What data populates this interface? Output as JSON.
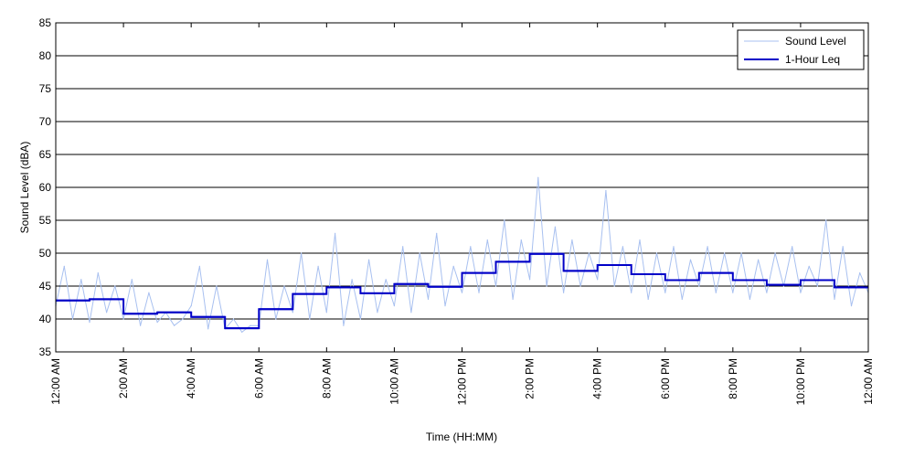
{
  "chart_data": {
    "type": "line",
    "title": "",
    "xlabel": "Time (HH:MM)",
    "ylabel": "Sound Level (dBA)",
    "ylim": [
      35,
      85
    ],
    "yticks": [
      35,
      40,
      45,
      50,
      55,
      60,
      65,
      70,
      75,
      80,
      85
    ],
    "xlim_hours": [
      0,
      24
    ],
    "xticks": [
      {
        "hour": 0,
        "label": "12:00 AM"
      },
      {
        "hour": 2,
        "label": "2:00 AM"
      },
      {
        "hour": 4,
        "label": "4:00 AM"
      },
      {
        "hour": 6,
        "label": "6:00 AM"
      },
      {
        "hour": 8,
        "label": "8:00 AM"
      },
      {
        "hour": 10,
        "label": "10:00 AM"
      },
      {
        "hour": 12,
        "label": "12:00 PM"
      },
      {
        "hour": 14,
        "label": "2:00 PM"
      },
      {
        "hour": 16,
        "label": "4:00 PM"
      },
      {
        "hour": 18,
        "label": "6:00 PM"
      },
      {
        "hour": 20,
        "label": "8:00 PM"
      },
      {
        "hour": 22,
        "label": "10:00 PM"
      },
      {
        "hour": 24,
        "label": "12:00 AM"
      }
    ],
    "grid": "horizontal",
    "legend_position": "top-right",
    "series": [
      {
        "name": "Sound Level",
        "color": "#a8c0f0",
        "x_hours": [
          0,
          0.25,
          0.5,
          0.75,
          1,
          1.25,
          1.5,
          1.75,
          2,
          2.25,
          2.5,
          2.75,
          3,
          3.25,
          3.5,
          3.75,
          4,
          4.25,
          4.5,
          4.75,
          5,
          5.25,
          5.5,
          5.75,
          6,
          6.25,
          6.5,
          6.75,
          7,
          7.25,
          7.5,
          7.75,
          8,
          8.25,
          8.5,
          8.75,
          9,
          9.25,
          9.5,
          9.75,
          10,
          10.25,
          10.5,
          10.75,
          11,
          11.25,
          11.5,
          11.75,
          12,
          12.25,
          12.5,
          12.75,
          13,
          13.25,
          13.5,
          13.75,
          14,
          14.25,
          14.5,
          14.75,
          15,
          15.25,
          15.5,
          15.75,
          16,
          16.25,
          16.5,
          16.75,
          17,
          17.25,
          17.5,
          17.75,
          18,
          18.25,
          18.5,
          18.75,
          19,
          19.25,
          19.5,
          19.75,
          20,
          20.25,
          20.5,
          20.75,
          21,
          21.25,
          21.5,
          21.75,
          22,
          22.25,
          22.5,
          22.75,
          23,
          23.25,
          23.5,
          23.75,
          24
        ],
        "values": [
          42,
          48,
          40,
          46,
          39.5,
          47,
          41,
          45,
          40,
          46,
          39,
          44,
          39.5,
          41,
          39,
          40,
          42,
          48,
          38.5,
          45,
          38.5,
          40,
          38,
          39,
          39,
          49,
          40,
          45,
          41,
          50,
          40,
          48,
          41,
          53,
          39,
          46,
          40,
          49,
          41,
          46,
          42,
          51,
          41,
          50,
          43,
          53,
          42,
          48,
          44,
          51,
          44,
          52,
          45,
          55,
          43,
          52,
          46,
          61.5,
          45,
          54,
          44,
          52,
          45,
          50,
          46,
          59.5,
          45,
          51,
          44,
          52,
          43,
          50,
          44,
          51,
          43,
          49,
          45,
          51,
          44,
          50,
          44,
          50,
          43,
          49,
          44,
          50,
          45,
          51,
          44,
          48,
          45,
          55,
          43,
          51,
          42,
          47,
          44
        ]
      },
      {
        "name": "1-Hour Leq",
        "color": "#0000c8",
        "step_hours": [
          0,
          1,
          2,
          3,
          4,
          5,
          6,
          7,
          8,
          9,
          10,
          11,
          12,
          13,
          14,
          15,
          16,
          17,
          18,
          19,
          20,
          21,
          22,
          23,
          24
        ],
        "values": [
          42.8,
          43.0,
          40.8,
          41.0,
          40.3,
          38.6,
          41.5,
          43.8,
          44.8,
          43.9,
          45.3,
          44.9,
          47.0,
          48.7,
          49.9,
          47.3,
          48.2,
          46.8,
          45.9,
          47.0,
          45.9,
          45.2,
          45.9,
          44.8
        ]
      }
    ]
  }
}
